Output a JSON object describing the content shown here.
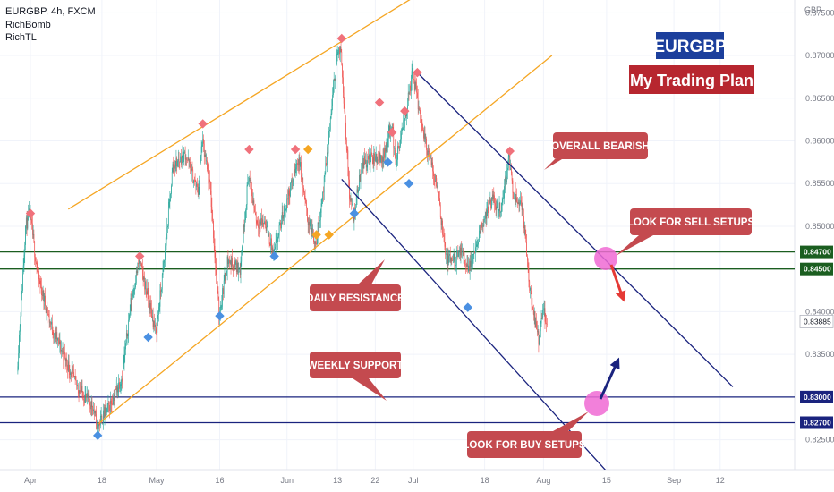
{
  "header": {
    "symbol": "EURGBP, 4h, FXCM",
    "indicators": [
      "RichBomb",
      "RichTL"
    ]
  },
  "title_badge": {
    "symbol": "EURGBP",
    "plan": "My Trading Plan"
  },
  "axis": {
    "currency": "GBP"
  },
  "callouts": {
    "overall": "OVERALL BEARISH",
    "sell": "LOOK FOR SELL SETUPS",
    "resistance": "DAILY RESISTANCE",
    "support": "WEEKLY SUPPORT",
    "buy": "LOOK FOR BUY SETUPS"
  },
  "colors": {
    "up": "#26a69a",
    "down": "#ef5350",
    "orange": "#f5a623",
    "navy": "#1a237e",
    "green": "#1b5e20",
    "callout": "#c44a4f",
    "pink": "#f06ad4",
    "blue_marker": "#4a90e2",
    "title_blue": "#1c3f9c",
    "title_red": "#b7262f"
  },
  "chart_data": {
    "type": "candlestick",
    "symbol": "EURGBP",
    "timeframe": "4h",
    "ylim": [
      0.8215,
      0.8765
    ],
    "y_ticks": [
      "0.87500",
      "0.87000",
      "0.86500",
      "0.86000",
      "0.85500",
      "0.85000",
      "0.84700",
      "0.84500",
      "0.84000",
      "0.83885",
      "0.83500",
      "0.83000",
      "0.82700",
      "0.82500"
    ],
    "x_ticks": [
      "Apr",
      "18",
      "May",
      "16",
      "Jun",
      "13",
      "22",
      "Jul",
      "18",
      "Aug",
      "15",
      "Sep",
      "12"
    ],
    "x_tick_days": [
      0,
      17,
      30,
      45,
      61,
      73,
      82,
      91,
      108,
      122,
      137,
      153,
      164
    ],
    "price_levels": [
      {
        "value": 0.847,
        "label": "0.84700",
        "color": "#1b5e20"
      },
      {
        "value": 0.845,
        "label": "0.84500",
        "color": "#1b5e20"
      },
      {
        "value": 0.83,
        "label": "0.83000",
        "color": "#1a237e"
      },
      {
        "value": 0.827,
        "label": "0.82700",
        "color": "#1a237e"
      }
    ],
    "current_price": "0.83885",
    "anchors": [
      [
        -3,
        0.833
      ],
      [
        -2,
        0.8415
      ],
      [
        -1,
        0.85
      ],
      [
        0,
        0.8515
      ],
      [
        2,
        0.844
      ],
      [
        5,
        0.8385
      ],
      [
        8,
        0.835
      ],
      [
        11,
        0.8315
      ],
      [
        14,
        0.8295
      ],
      [
        15,
        0.829
      ],
      [
        16,
        0.8265
      ],
      [
        19,
        0.829
      ],
      [
        22,
        0.8325
      ],
      [
        24,
        0.841
      ],
      [
        26,
        0.846
      ],
      [
        28,
        0.842
      ],
      [
        30,
        0.8375
      ],
      [
        32,
        0.846
      ],
      [
        34,
        0.857
      ],
      [
        37,
        0.8585
      ],
      [
        40,
        0.854
      ],
      [
        41,
        0.86
      ],
      [
        43,
        0.854
      ],
      [
        45,
        0.8395
      ],
      [
        47,
        0.846
      ],
      [
        50,
        0.845
      ],
      [
        52,
        0.856
      ],
      [
        54,
        0.8505
      ],
      [
        56,
        0.8505
      ],
      [
        58,
        0.8465
      ],
      [
        60,
        0.851
      ],
      [
        62,
        0.8545
      ],
      [
        64,
        0.858
      ],
      [
        66,
        0.851
      ],
      [
        68,
        0.848
      ],
      [
        70,
        0.855
      ],
      [
        72,
        0.865
      ],
      [
        73,
        0.87
      ],
      [
        74,
        0.8705
      ],
      [
        76,
        0.854
      ],
      [
        77,
        0.851
      ],
      [
        79,
        0.8575
      ],
      [
        82,
        0.858
      ],
      [
        84,
        0.858
      ],
      [
        86,
        0.862
      ],
      [
        87,
        0.8575
      ],
      [
        89,
        0.862
      ],
      [
        90,
        0.865
      ],
      [
        91,
        0.868
      ],
      [
        94,
        0.86
      ],
      [
        95,
        0.858
      ],
      [
        97,
        0.8545
      ],
      [
        99,
        0.846
      ],
      [
        101,
        0.846
      ],
      [
        103,
        0.847
      ],
      [
        104,
        0.845
      ],
      [
        106,
        0.847
      ],
      [
        108,
        0.851
      ],
      [
        110,
        0.853
      ],
      [
        112,
        0.852
      ],
      [
        114,
        0.858
      ],
      [
        115,
        0.854
      ],
      [
        117,
        0.8525
      ],
      [
        118,
        0.848
      ],
      [
        119,
        0.842
      ],
      [
        121,
        0.8365
      ],
      [
        122,
        0.84
      ],
      [
        123,
        0.839
      ]
    ],
    "markers": {
      "diamond_red": [
        [
          0,
          0.8515
        ],
        [
          26,
          0.8465
        ],
        [
          41,
          0.862
        ],
        [
          52,
          0.859
        ],
        [
          63,
          0.859
        ],
        [
          74,
          0.872
        ],
        [
          83,
          0.8645
        ],
        [
          86,
          0.861
        ],
        [
          89,
          0.8635
        ],
        [
          92,
          0.868
        ],
        [
          114,
          0.8588
        ]
      ],
      "diamond_blue": [
        [
          16,
          0.8255
        ],
        [
          28,
          0.837
        ],
        [
          45,
          0.8395
        ],
        [
          58,
          0.8465
        ],
        [
          77,
          0.8515
        ],
        [
          85,
          0.8575
        ],
        [
          90,
          0.855
        ],
        [
          104,
          0.8405
        ]
      ],
      "diamond_orange": [
        [
          66,
          0.859
        ],
        [
          68,
          0.849
        ],
        [
          71,
          0.849
        ]
      ]
    },
    "trendlines": [
      {
        "name": "ascending-channel-top",
        "color": "#f5a623",
        "from": [
          9,
          0.852
        ],
        "to": [
          100,
          0.8795
        ]
      },
      {
        "name": "ascending-channel-bottom",
        "color": "#f5a623",
        "from": [
          16,
          0.8268
        ],
        "to": [
          124,
          0.87
        ]
      },
      {
        "name": "descending-channel-top",
        "color": "#1a237e",
        "from": [
          92,
          0.868
        ],
        "to": [
          167,
          0.8312
        ]
      },
      {
        "name": "descending-channel-bottom",
        "color": "#1a237e",
        "from": [
          74,
          0.8555
        ],
        "to": [
          144,
          0.8175
        ]
      }
    ]
  }
}
